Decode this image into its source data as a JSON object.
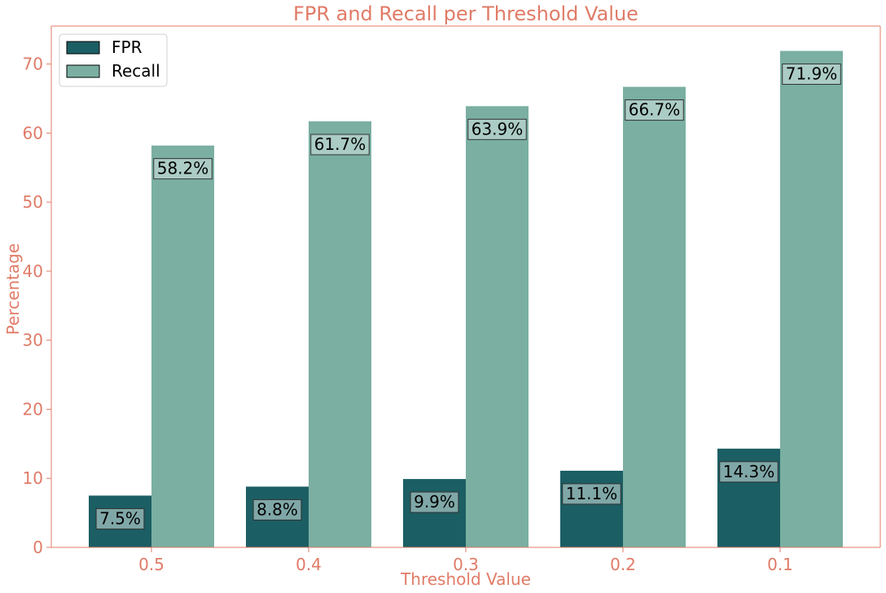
{
  "chart_data": {
    "type": "bar",
    "title": "FPR and Recall per Threshold Value",
    "xlabel": "Threshold Value",
    "ylabel": "Percentage",
    "categories": [
      "0.5",
      "0.4",
      "0.3",
      "0.2",
      "0.1"
    ],
    "series": [
      {
        "name": "FPR",
        "values": [
          7.5,
          8.8,
          9.9,
          11.1,
          14.3
        ],
        "labels": [
          "7.5%",
          "8.8%",
          "9.9%",
          "11.1%",
          "14.3%"
        ],
        "color": "#1b5e63"
      },
      {
        "name": "Recall",
        "values": [
          58.2,
          61.7,
          63.9,
          66.7,
          71.9
        ],
        "labels": [
          "58.2%",
          "61.7%",
          "63.9%",
          "66.7%",
          "71.9%"
        ],
        "color": "#7aafa2"
      }
    ],
    "ylim": [
      0,
      75.5
    ],
    "yticks": [
      "0",
      "10",
      "20",
      "30",
      "40",
      "50",
      "60",
      "70"
    ],
    "grid": false,
    "legend": "top-left",
    "colors": {
      "text": "#e07b67",
      "spine": "#e07b67",
      "label_box": "#d4e3e0"
    }
  }
}
